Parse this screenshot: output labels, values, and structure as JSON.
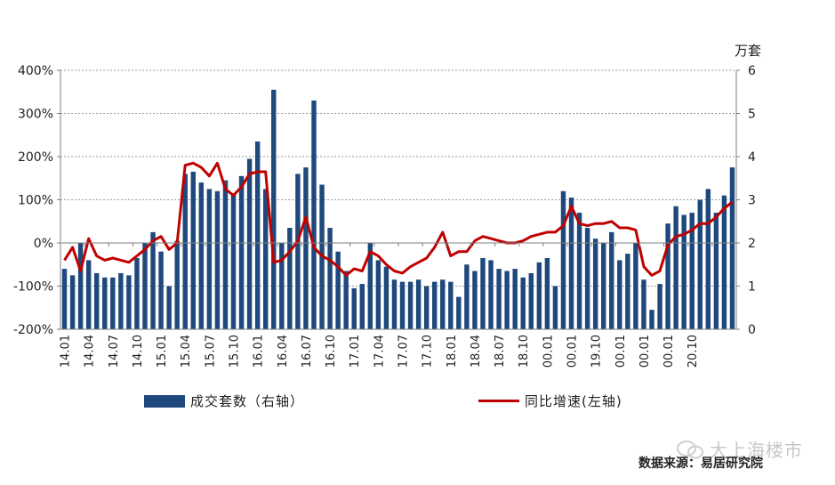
{
  "chart_data": {
    "type": "bar+line",
    "y_left": {
      "ticks": [
        "400%",
        "300%",
        "200%",
        "100%",
        "0%",
        "-100%",
        "-200%"
      ],
      "range": [
        -200,
        400
      ]
    },
    "y_right": {
      "unit": "万套",
      "ticks": [
        "6",
        "5",
        "4",
        "3",
        "2",
        "1",
        "0"
      ],
      "range": [
        0,
        6
      ]
    },
    "x_tick_labels": [
      "14.01",
      "14.04",
      "14.07",
      "14.10",
      "15.01",
      "15.04",
      "15.07",
      "15.10",
      "16.01",
      "16.04",
      "16.07",
      "16.10",
      "17.01",
      "17.04",
      "17.07",
      "17.10",
      "18.01",
      "18.04",
      "18.07",
      "18.10",
      "00.01",
      "00.01",
      "19.10",
      "00.01",
      "00.01",
      "00.01",
      "20.10"
    ],
    "series": [
      {
        "name": "成交套数（右轴）",
        "axis": "right",
        "kind": "bar",
        "color": "#1f497d",
        "values": [
          1.4,
          1.25,
          2.0,
          1.6,
          1.3,
          1.2,
          1.2,
          1.3,
          1.25,
          1.65,
          2.0,
          2.25,
          1.8,
          1.0,
          2.05,
          3.6,
          3.65,
          3.4,
          3.25,
          3.2,
          3.45,
          3.15,
          3.55,
          3.95,
          4.35,
          3.25,
          5.55,
          2.0,
          2.35,
          3.6,
          3.75,
          5.3,
          3.35,
          2.35,
          1.8,
          1.35,
          0.95,
          1.05,
          2.0,
          1.6,
          1.45,
          1.15,
          1.1,
          1.1,
          1.15,
          1.0,
          1.1,
          1.15,
          1.1,
          0.75,
          1.5,
          1.35,
          1.65,
          1.6,
          1.4,
          1.35,
          1.4,
          1.2,
          1.3,
          1.55,
          1.65,
          1.0,
          3.2,
          3.05,
          2.7,
          2.35,
          2.1,
          2.0,
          2.25,
          1.6,
          1.75,
          2.0,
          1.15,
          0.45,
          1.05,
          2.45,
          2.85,
          2.65,
          2.7,
          3.0,
          3.25,
          2.7,
          3.1,
          3.75
        ]
      },
      {
        "name": "同比增速(左轴)",
        "axis": "left",
        "kind": "line",
        "color": "#c00000",
        "values": [
          -40,
          -10,
          -65,
          10,
          -30,
          -40,
          -35,
          -40,
          -45,
          -30,
          -15,
          5,
          15,
          -15,
          0,
          180,
          185,
          175,
          155,
          185,
          125,
          110,
          130,
          160,
          165,
          165,
          -45,
          -40,
          -20,
          5,
          60,
          -10,
          -30,
          -40,
          -55,
          -75,
          -60,
          -65,
          -20,
          -30,
          -50,
          -65,
          -70,
          -55,
          -45,
          -35,
          -10,
          25,
          -30,
          -20,
          -20,
          5,
          15,
          10,
          5,
          0,
          0,
          5,
          15,
          20,
          25,
          25,
          40,
          85,
          45,
          40,
          45,
          45,
          50,
          35,
          35,
          30,
          -55,
          -75,
          -65,
          -5,
          15,
          20,
          30,
          45,
          45,
          60,
          80,
          95
        ]
      }
    ],
    "title": "",
    "legend_position": "bottom"
  },
  "legend": {
    "bar_label": "成交套数（右轴）",
    "line_label": "同比增速(左轴)"
  },
  "source": "数据来源：易居研究院",
  "watermark": "大上海楼市"
}
